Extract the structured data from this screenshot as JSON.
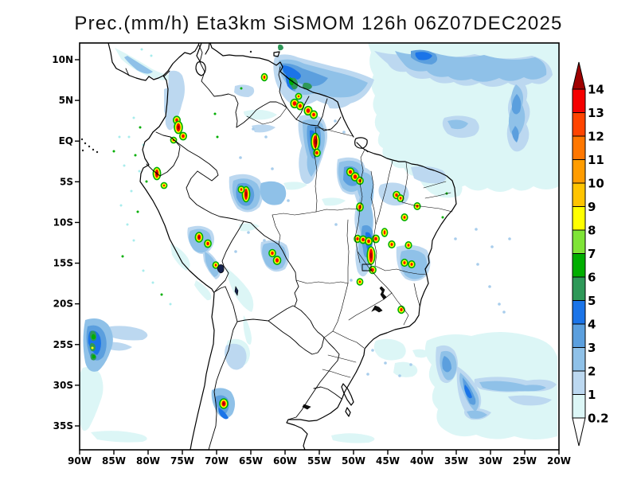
{
  "title": "Prec.(mm/h) Eta3km SiSMOM 126h 06Z07DEC2025",
  "map": {
    "lat_ticks": [
      "10N",
      "5N",
      "EQ",
      "5S",
      "10S",
      "15S",
      "20S",
      "25S",
      "30S",
      "35S"
    ],
    "lon_ticks": [
      "90W",
      "85W",
      "80W",
      "75W",
      "70W",
      "65W",
      "60W",
      "55W",
      "50W",
      "45W",
      "40W",
      "35W",
      "30W",
      "25W",
      "20W"
    ]
  },
  "colorbar": {
    "units": "mm/h",
    "levels": [
      "0.2",
      "1",
      "2",
      "3",
      "4",
      "5",
      "6",
      "7",
      "8",
      "9",
      "10",
      "11",
      "12",
      "13",
      "14"
    ],
    "colors": [
      "#DCF6F6",
      "#BCD8F0",
      "#8FC1E8",
      "#5B9FDE",
      "#1B74E8",
      "#2E9858",
      "#00AE00",
      "#7FE437",
      "#FFFF00",
      "#FFC400",
      "#FF9C00",
      "#FF7700",
      "#FF4400",
      "#F50000"
    ],
    "over_color": "#A00000",
    "under_color": "#FFFFFF"
  },
  "chart_data": {
    "type": "heatmap",
    "title": "Prec.(mm/h) Eta3km SiSMOM 126h 06Z07DEC2025",
    "variable": "precipitation rate",
    "units": "mm/h",
    "lon_range": [
      "90W",
      "20W"
    ],
    "lat_range": [
      "35S",
      "10N"
    ],
    "scale_levels": [
      0.2,
      1,
      2,
      3,
      4,
      5,
      6,
      7,
      8,
      9,
      10,
      11,
      12,
      13,
      14
    ],
    "notable_features": [
      "ITCZ light-rain band over tropical Atlantic (NE of map)",
      "Heavy convective cluster over Guyana/N Amazonia (>14 mm/h cores)",
      "Meridional convective band ~47W across Tocantins/Goias",
      "Convective cells over Colombia, Peru, Bolivia Andes",
      "Rain area off Chilean coast near 25S",
      "Cell over Andes of Argentina ~33S",
      "Frontal streaks over South Atlantic ~30S"
    ]
  },
  "precip": {
    "layers": [
      {
        "level": "0.2-1",
        "color": "#DCF6F6",
        "paths": [
          "M462,54 L702,54 L702,234 Q686,242 670,234 Q656,244 644,236 Q628,246 612,236 Q598,244 584,233 Q566,240 554,228 Q540,233 530,221 Q514,224 507,211 Q494,213 489,200 Q478,199 481,186 Q471,181 477,167 Q467,158 473,144 Q465,134 471,120 Q463,108 469,94 Q461,80 466,66 Z",
          "M524,204 Q550,210 572,222 Q586,234 577,246 Q558,252 542,243 Q528,233 524,218 Z",
          "M536,428 Q562,416 592,422 Q628,412 664,422 Q692,428 698,444 L700,448 L700,548 Q672,556 646,548 Q620,556 598,546 Q576,552 560,541 Q544,532 550,514 Q538,503 546,486 Q534,474 542,458 Q530,444 536,428 Z",
          "M472,428 Q492,422 506,432 Q514,442 505,450 Q488,456 476,448 Q466,438 472,428 Z",
          "M496,456 Q512,452 522,460 Q528,468 518,473 Q502,476 494,468 Z",
          "M518,440 Q532,436 540,444 Q534,452 522,448 Z",
          "M104,462 Q118,458 126,470 Q133,487 126,504 Q120,522 112,537 Q104,547 101,533 L100,470 Z",
          "M114,543 Q148,538 178,546 Q191,551 179,555 Q148,557 122,552 Z",
          "M416,547 Q442,541 466,548 Q476,552 463,556 Q437,558 418,553 Z",
          "M144,60 Q168,72 190,86 Q208,96 224,95 Q214,104 196,99 Q172,92 152,74 Z",
          "M214,306 Q228,312 236,324 Q242,336 234,340 Q224,334 216,320 Z",
          "M246,352 Q258,358 264,368 Q268,378 260,377 Q250,368 244,358 Z",
          "M286,428 Q300,422 310,432 Q318,444 310,456 Q300,466 290,458 Q280,444 286,428 Z",
          "M306,140 Q330,134 348,144 Q338,152 318,150 Q306,148 306,140 Z",
          "M356,230 Q374,226 386,232 Q376,240 360,238 Z",
          "M404,250 Q422,246 434,252 Q424,260 408,258 Z",
          "M300,282 Q316,278 326,284 Q316,292 302,290 Z",
          "M284,336 Q300,348 312,364 Q322,380 316,392 Q306,388 296,372 Q286,354 284,336 Z",
          "M306,396 Q314,408 316,424 Q316,438 310,430 Q304,412 306,396 Z"
        ]
      },
      {
        "level": "1-2",
        "color": "#BCD8F0",
        "paths": [
          "M470,64 Q500,72 528,66 Q562,76 596,68 Q632,78 668,70 Q692,76 694,94 Q684,110 668,104 Q652,112 638,104 Q618,114 602,104 Q584,112 570,103 Q552,108 540,98 Q520,102 510,90 Q494,92 487,80 Q477,72 470,64 Z",
          "M652,100 Q666,108 661,126 Q670,140 661,156 Q669,172 658,186 Q647,196 640,183 Q633,166 641,150 Q634,134 643,118 Q645,106 652,100 Z",
          "M558,148 Q580,142 597,150 Q607,161 596,170 Q577,177 562,168 Q552,157 558,148 Z",
          "M346,70 Q360,66 374,72 L420,84 Q450,90 470,100 Q462,124 440,130 Q416,136 398,126 Q374,140 360,126 Q346,110 344,92 Q342,78 346,70 Z",
          "M376,146 Q394,140 406,150 Q415,167 408,187 Q402,209 393,226 Q384,237 378,224 Q372,203 379,183 Q372,161 376,146 Z",
          "M212,90 Q223,86 229,95 Q235,112 229,129 Q225,145 219,159 Q212,169 208,156 Q206,135 211,114 Z",
          "M424,200 Q444,194 456,204 Q464,220 456,238 Q444,250 430,240 Q420,226 424,200 Z",
          "M478,232 Q496,226 510,234 Q518,246 508,256 Q492,262 480,252 Q472,240 478,232 Z",
          "M516,210 Q538,206 556,214 Q566,224 554,230 Q534,232 520,224 Z",
          "M442,212 Q458,206 466,216 Q473,237 466,258 Q473,280 465,300 Q471,320 463,340 Q456,354 449,341 Q443,319 450,298 Q441,276 449,255 Q440,232 442,212 Z",
          "M498,310 Q520,304 536,314 Q545,330 536,346 Q524,358 509,350 Q496,338 498,310 Z",
          "M548,436 Q562,430 571,441 Q579,457 571,473 Q562,487 553,477 Q545,460 548,436 Z",
          "M574,460 Q589,469 599,486 Q609,503 600,517 Q590,528 582,513 Q572,492 574,460 Z",
          "M596,476 Q630,470 662,478 Q690,474 699,483 Q690,494 663,491 Q630,495 604,489 Q594,484 596,476 Z",
          "M584,514 Q602,510 617,518 Q609,529 592,527 Q580,522 584,514 Z",
          "M638,498 Q668,494 693,502 Q684,511 658,509 Q642,506 638,498 Z",
          "M128,412 Q154,406 178,414 Q192,421 179,427 Q156,429 138,423 Z",
          "M132,430 Q152,428 166,436 Q155,443 138,439 Z",
          "M284,434 Q298,428 307,438 Q313,450 305,461 Q295,469 287,459 Q279,446 284,434 Z",
          "M316,158 Q334,154 346,160 Q336,168 320,166 Z",
          "M410,128 Q428,124 440,130 Q430,138 414,136 Z",
          "M332,238 Q348,232 358,240 Q350,248 336,246 Z",
          "M236,286 Q254,280 266,290 Q273,302 264,314 Q254,324 243,314 Q233,300 236,286 Z",
          "M254,312 Q268,318 275,333 Q280,347 271,351 Q261,342 256,328 Z",
          "M288,222 Q310,214 326,226 Q335,242 326,260 Q313,272 298,262 Q286,246 288,222 Z",
          "M328,304 Q348,298 360,308 Q367,324 358,338 Q344,346 334,334 Q325,318 328,304 Z",
          "M295,108 Q308,104 318,110 Q322,118 312,122 Q300,122 294,116 Z",
          "M206,112 Q214,108 218,116 Q222,130 216,142 Q210,150 206,140 Z"
        ]
      },
      {
        "level": "2-3",
        "color": "#8FC1E8",
        "paths": [
          "M496,64 Q520,72 544,66 Q576,76 608,69 Q640,79 672,72 Q688,78 686,94 Q672,104 658,97 Q641,106 627,98 Q606,107 592,99 Q574,104 563,96 Q545,99 536,89 Q516,92 507,80 Q500,72 496,64 Z",
          "M648,106 Q660,114 656,132 Q663,148 655,164 Q648,178 641,166 Q636,150 643,134 Q639,120 648,106 Z",
          "M562,152 Q578,148 588,155 Q582,165 567,161 Z",
          "M350,76 Q366,72 382,80 L420,90 Q446,96 462,104 Q454,120 436,122 Q414,124 398,116 Q378,124 366,112 Q352,98 350,84 Z",
          "M380,152 Q396,146 405,156 Q411,173 405,191 Q399,211 391,222 Q384,214 386,197 Q380,176 380,152 Z",
          "M328,230 Q346,224 357,234 Q363,247 353,256 Q339,261 330,251 Q324,240 328,230 Z",
          "M426,204 Q444,198 455,208 Q461,222 453,236 Q441,246 430,236 Q422,220 426,204 Z",
          "M448,218 Q461,213 467,223 Q472,241 466,260 Q471,281 464,302 Q469,322 462,338 Q455,346 452,333 Q448,313 453,293 Q446,270 452,248 Q445,231 448,218 Z",
          "M293,227 Q311,220 323,231 Q331,245 322,259 Q310,269 299,258 Q289,243 293,227 Z",
          "M331,307 Q347,301 357,311 Q363,325 355,336 Q343,343 334,332 Q326,318 331,307 Z",
          "M239,290 Q254,284 263,293 Q269,305 261,314 Q251,322 242,312 Q234,300 239,290 Z",
          "M257,316 Q268,322 273,335 Q277,346 269,348 Q261,339 258,328 Z",
          "M504,316 Q521,310 533,320 Q540,334 532,347 Q520,355 509,346 Q499,332 504,316 Z",
          "M107,402 Q125,396 136,408 Q146,423 139,440 Q133,458 123,466 Q111,470 107,455 Q102,428 107,402 Z",
          "M554,442 Q565,438 571,448 Q577,462 569,475 Q561,482 556,470 Q550,456 554,442 Z",
          "M578,468 Q590,478 599,494 Q605,508 597,517 Q588,509 582,493 Q575,479 578,468 Z",
          "M602,480 Q632,476 660,484 Q678,482 686,487 Q676,493 652,491 Q624,493 606,487 Z",
          "M586,517 Q601,513 612,521 Q603,528 591,525 Z",
          "M266,490 Q279,484 290,492 Q299,505 292,520 Q283,531 274,520 Q264,505 266,490 Z",
          "M160,70 Q176,80 192,90 Q186,96 172,88 Q160,78 156,72 Z"
        ]
      },
      {
        "level": "3-4",
        "color": "#5B9FDE",
        "paths": [
          "M516,64 Q534,60 547,68 Q553,77 542,81 Q525,80 516,72 Z",
          "M649,118 Q657,126 653,140 Q647,148 643,138 Q642,126 649,118 Z",
          "M647,158 Q655,166 649,179 Q643,174 643,165 Z",
          "M352,80 Q366,78 380,86 Q398,92 412,98 Q404,110 388,108 Q370,104 358,94 Z",
          "M356,82 Q366,92 371,107 Q373,119 365,112 Q357,98 354,86 Z",
          "M386,158 Q397,153 402,163 Q405,179 399,195 Q393,205 389,192 Q384,173 386,158 Z",
          "M455,284 Q464,280 468,290 Q470,306 464,321 Q457,328 456,313 Q452,297 455,284 Z",
          "M110,410 Q124,405 131,418 Q137,433 130,448 Q121,458 113,447 Q106,428 110,410 Z",
          "M581,474 Q591,485 597,501 Q599,512 590,507 Q582,492 581,474 Z",
          "M558,447 Q567,451 567,463 Q562,472 556,463 Q554,453 558,447 Z",
          "M299,231 Q312,227 318,238 Q322,250 313,258 Q302,261 297,248 Q295,238 299,231 Z",
          "M432,210 Q444,206 450,215 Q454,226 447,233 Q437,236 431,226 Z",
          "M271,498 Q280,494 286,501 Q290,511 284,519 Q277,522 273,512 Q268,505 271,498 Z"
        ]
      },
      {
        "level": "4-5",
        "color": "#1B74E8",
        "paths": [
          "M354,82 Q364,82 374,90 Q382,96 374,100 Q362,98 356,90 Z",
          "M361,88 Q368,96 370,109 Q368,117 361,108 Q357,96 361,88 Z",
          "M522,66 Q536,63 543,70 Q539,77 526,75 Q520,70 522,66 Z",
          "M113,416 Q122,413 126,424 Q129,437 122,446 Q115,443 111,431 Q110,421 113,416 Z",
          "M389,164 Q395,162 397,171 Q398,183 393,190 Q389,181 389,164 Z",
          "M584,483 Q590,489 593,499 Q589,503 585,494 Q582,487 584,483 Z",
          "M275,512 Q283,517 287,525 Q283,529 277,522 Q273,516 275,512 Z",
          "M459,292 Q465,290 467,299 Q468,311 463,318 Q459,310 459,292 Z"
        ]
      },
      {
        "level": "5-6",
        "color": "#2E9858",
        "paths": [
          "M366,98 Q372,96 374,104 Q375,113 368,112 Q363,106 366,98 Z",
          "M382,104 Q390,103 392,109 Q390,114 382,112 Q378,108 382,104 Z",
          "M114,416 Q120,414 121,421 Q122,429 116,428 Q111,424 114,416 Z",
          "M114,431 Q119,430 120,436 Q120,442 115,441 Q111,437 114,431 Z",
          "M115,444 Q120,443 121,449 Q120,454 115,452 Q112,448 115,444 Z",
          "M350,56 Q355,55 356,60 Q355,64 350,63 Q348,59 350,56 Z"
        ]
      },
      {
        "level": "6-7",
        "color": "#00AE00",
        "paths": [
          "M116,420 Q119,419 120,423 Q120,427 116,426 Q114,423 116,420 Z",
          "M364,97 Q368,98 369,104 Q368,109 364,106 Q362,101 364,97 Z",
          "M116,446 Q119,445 120,448 Q119,451 116,450 Z"
        ]
      }
    ],
    "speckle_colors": {
      "c": "#A8ECEC",
      "g": "#00AE00",
      "b": "#A8CDEC",
      "y": "#FFFF00"
    },
    "speckles": [
      [
        168,
        148,
        "c"
      ],
      [
        176,
        160,
        "g"
      ],
      [
        162,
        172,
        "c"
      ],
      [
        180,
        182,
        "c"
      ],
      [
        170,
        195,
        "g"
      ],
      [
        156,
        208,
        "c"
      ],
      [
        175,
        215,
        "c"
      ],
      [
        184,
        228,
        "g"
      ],
      [
        165,
        240,
        "c"
      ],
      [
        152,
        258,
        "c"
      ],
      [
        173,
        266,
        "g"
      ],
      [
        160,
        282,
        "c"
      ],
      [
        168,
        302,
        "c"
      ],
      [
        154,
        322,
        "g"
      ],
      [
        180,
        340,
        "c"
      ],
      [
        192,
        355,
        "c"
      ],
      [
        203,
        370,
        "g"
      ],
      [
        214,
        382,
        "c"
      ],
      [
        150,
        172,
        "c"
      ],
      [
        143,
        190,
        "g"
      ],
      [
        318,
        162,
        "b"
      ],
      [
        334,
        172,
        "b"
      ],
      [
        302,
        198,
        "b"
      ],
      [
        342,
        212,
        "b"
      ],
      [
        421,
        152,
        "b"
      ],
      [
        432,
        166,
        "b"
      ],
      [
        362,
        252,
        "b"
      ],
      [
        312,
        292,
        "b"
      ],
      [
        332,
        302,
        "b"
      ],
      [
        296,
        316,
        "b"
      ],
      [
        422,
        282,
        "b"
      ],
      [
        441,
        352,
        "b"
      ],
      [
        618,
        310,
        "b"
      ],
      [
        600,
        332,
        "b"
      ],
      [
        615,
        360,
        "b"
      ],
      [
        627,
        382,
        "b"
      ],
      [
        633,
        392,
        "b"
      ],
      [
        640,
        300,
        "b"
      ],
      [
        598,
        288,
        "b"
      ],
      [
        572,
        300,
        "b"
      ],
      [
        556,
        273,
        "g"
      ],
      [
        561,
        243,
        "g"
      ],
      [
        468,
        440,
        "b"
      ],
      [
        484,
        456,
        "b"
      ],
      [
        462,
        470,
        "b"
      ],
      [
        502,
        472,
        "b"
      ],
      [
        516,
        458,
        "b"
      ],
      [
        178,
        62,
        "c"
      ],
      [
        190,
        70,
        "c"
      ],
      [
        303,
        111,
        "g"
      ],
      [
        270,
        143,
        "g"
      ],
      [
        273,
        172,
        "g"
      ],
      [
        116,
        437,
        "y"
      ]
    ],
    "cells": [
      [
        222,
        151,
        1.8,
        2.4
      ],
      [
        224,
        160,
        2.6,
        5.2
      ],
      [
        230,
        171,
        1.8,
        2.2
      ],
      [
        218,
        176,
        1.2,
        1.2
      ],
      [
        197,
        218,
        2.2,
        5.2
      ],
      [
        206,
        233,
        1.2,
        1.2
      ],
      [
        250,
        298,
        2.2,
        3.6
      ],
      [
        261,
        306,
        1.7,
        2.2
      ],
      [
        271,
        333,
        1.2,
        1.6
      ],
      [
        309,
        244,
        2.2,
        7.0
      ],
      [
        303,
        238,
        1.3,
        1.7
      ],
      [
        342,
        318,
        1.7,
        2.1
      ],
      [
        348,
        327,
        2.1,
        2.7
      ],
      [
        370,
        130,
        2.4,
        2.9
      ],
      [
        377,
        133,
        1.9,
        2.3
      ],
      [
        387,
        139,
        2.4,
        2.9
      ],
      [
        394,
        144,
        1.9,
        2.3
      ],
      [
        375,
        121,
        1.2,
        1.2
      ],
      [
        332,
        97,
        1.2,
        2.0
      ],
      [
        396,
        178,
        2.7,
        8.0
      ],
      [
        398,
        192,
        1.7,
        2.1
      ],
      [
        440,
        216,
        2.0,
        2.4
      ],
      [
        446,
        222,
        2.3,
        2.7
      ],
      [
        452,
        227,
        1.7,
        2.0
      ],
      [
        498,
        245,
        1.7,
        2.1
      ],
      [
        503,
        249,
        1.3,
        1.7
      ],
      [
        508,
        273,
        1.4,
        1.8
      ],
      [
        524,
        259,
        1.4,
        1.8
      ],
      [
        452,
        260,
        1.7,
        2.6
      ],
      [
        449,
        300,
        1.6,
        2.0
      ],
      [
        456,
        301,
        1.8,
        2.2
      ],
      [
        463,
        303,
        1.8,
        2.2
      ],
      [
        472,
        300,
        1.8,
        2.2
      ],
      [
        466,
        321,
        2.4,
        8.6
      ],
      [
        468,
        339,
        1.7,
        2.1
      ],
      [
        452,
        354,
        1.2,
        1.5
      ],
      [
        492,
        307,
        1.5,
        1.9
      ],
      [
        513,
        308,
        1.4,
        1.8
      ],
      [
        508,
        330,
        1.5,
        1.9
      ],
      [
        517,
        332,
        1.5,
        1.9
      ],
      [
        504,
        389,
        1.6,
        2.0
      ],
      [
        483,
        292,
        1.2,
        2.6
      ],
      [
        281,
        507,
        2.6,
        3.6
      ]
    ]
  }
}
